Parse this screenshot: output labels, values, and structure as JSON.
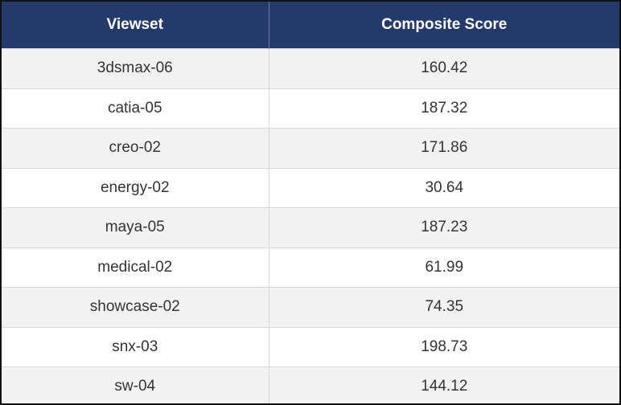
{
  "table": {
    "header": [
      "Viewset",
      "Composite Score"
    ],
    "rows": [
      [
        "3dsmax-06",
        "160.42"
      ],
      [
        "catia-05",
        "187.32"
      ],
      [
        "creo-02",
        "171.86"
      ],
      [
        "energy-02",
        "30.64"
      ],
      [
        "maya-05",
        "187.23"
      ],
      [
        "medical-02",
        "61.99"
      ],
      [
        "showcase-02",
        "74.35"
      ],
      [
        "snx-03",
        "198.73"
      ],
      [
        "sw-04",
        "144.12"
      ]
    ]
  }
}
